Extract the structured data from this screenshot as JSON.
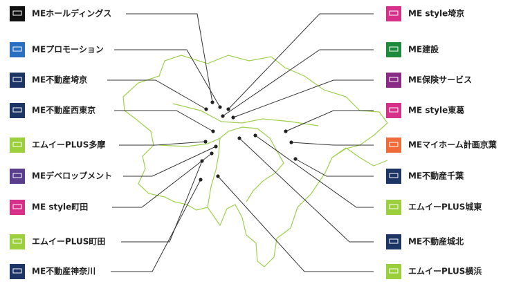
{
  "left": [
    {
      "label": "MEホールディングス"
    },
    {
      "label": "MEプロモーション"
    },
    {
      "label": "ME不動産埼京"
    },
    {
      "label": "ME不動産西東京"
    },
    {
      "label": "エムイーPLUS多摩"
    },
    {
      "label": "MEデベロップメント"
    },
    {
      "label": "ME style町田"
    },
    {
      "label": "エムイーPLUS町田"
    },
    {
      "label": "ME不動産神奈川"
    }
  ],
  "right": [
    {
      "label": "ME style埼京"
    },
    {
      "label": "ME建設"
    },
    {
      "label": "ME保険サービス"
    },
    {
      "label": "ME style東葛"
    },
    {
      "label": "MEマイホーム計画京葉"
    },
    {
      "label": "ME不動産千葉"
    },
    {
      "label": "エムイーPLUS城東"
    },
    {
      "label": "ME不動産城北"
    },
    {
      "label": "エムイーPLUS横浜"
    }
  ]
}
